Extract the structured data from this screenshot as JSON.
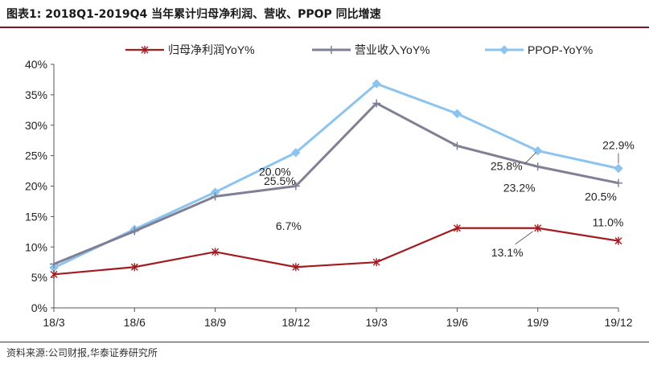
{
  "figure_title": "图表1:  2018Q1-2019Q4 当年累计归母净利润、营收、PPOP 同比增速",
  "source_note": "资料来源:公司财报,华泰证券研究所",
  "chart_data": {
    "type": "line",
    "title": "2018Q1-2019Q4 当年累计归母净利润、营收、PPOP 同比增速",
    "xlabel": "",
    "ylabel": "",
    "categories": [
      "18/3",
      "18/6",
      "18/9",
      "18/12",
      "19/3",
      "19/6",
      "19/9",
      "19/12"
    ],
    "ylim": [
      0,
      40
    ],
    "yticks": [
      0,
      5,
      10,
      15,
      20,
      25,
      30,
      35,
      40
    ],
    "ytick_labels": [
      "0%",
      "5%",
      "10%",
      "15%",
      "20%",
      "25%",
      "30%",
      "35%",
      "40%"
    ],
    "grid": false,
    "legend_position": "top",
    "series": [
      {
        "name": "归母净利润YoY%",
        "color": "#a31a1f",
        "marker": "star",
        "values": [
          5.5,
          6.7,
          9.2,
          6.7,
          7.5,
          13.1,
          13.1,
          11.0
        ]
      },
      {
        "name": "营业收入YoY%",
        "color": "#7f8096",
        "marker": "plus",
        "values": [
          7.2,
          12.6,
          18.3,
          20.0,
          33.6,
          26.6,
          23.2,
          20.5
        ]
      },
      {
        "name": "PPOP-YoY%",
        "color": "#8dc4ef",
        "marker": "diamond",
        "values": [
          6.6,
          12.9,
          19.0,
          25.5,
          36.8,
          31.9,
          25.8,
          22.9
        ]
      }
    ],
    "annotations": [
      {
        "text": "6.7%",
        "series": 0,
        "point": 3
      },
      {
        "text": "13.1%",
        "series": 0,
        "point": 6
      },
      {
        "text": "11.0%",
        "series": 0,
        "point": 7
      },
      {
        "text": "20.0%",
        "series": 1,
        "point": 3
      },
      {
        "text": "23.2%",
        "series": 1,
        "point": 6
      },
      {
        "text": "20.5%",
        "series": 1,
        "point": 7
      },
      {
        "text": "25.5%",
        "series": 2,
        "point": 3
      },
      {
        "text": "25.8%",
        "series": 2,
        "point": 6
      },
      {
        "text": "22.9%",
        "series": 2,
        "point": 7
      }
    ]
  }
}
